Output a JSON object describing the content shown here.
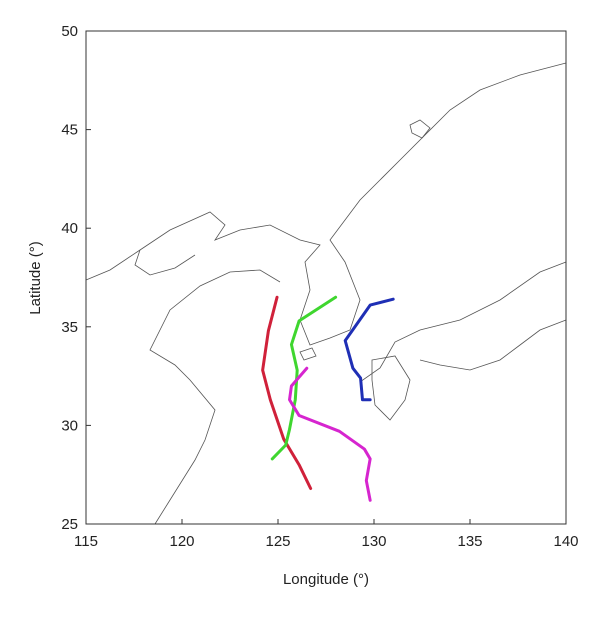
{
  "chart_data": {
    "type": "line",
    "xlabel": "Longitude (°)",
    "ylabel": "Latitude (°)",
    "xlim": [
      115,
      140
    ],
    "ylim": [
      25,
      50
    ],
    "xticks": [
      115,
      120,
      125,
      130,
      135,
      140
    ],
    "yticks": [
      25,
      30,
      35,
      40,
      45,
      50
    ],
    "series": [
      {
        "color": "#d0213a",
        "x": [
          124.95,
          124.5,
          124.2,
          124.6,
          125.3,
          126.1,
          126.7
        ],
        "values": [
          36.5,
          34.8,
          32.8,
          31.3,
          29.3,
          28.0,
          26.8
        ]
      },
      {
        "color": "#3fd62f",
        "x": [
          128.0,
          126.1,
          125.7,
          126.0,
          125.9,
          125.6,
          125.4,
          124.7
        ],
        "values": [
          36.5,
          35.3,
          34.1,
          32.8,
          31.3,
          29.8,
          29.0,
          28.3
        ]
      },
      {
        "color": "#1f2fb5",
        "x": [
          131.0,
          129.8,
          128.5,
          128.9,
          129.3,
          129.4,
          129.8
        ],
        "values": [
          36.4,
          36.1,
          34.3,
          32.9,
          32.4,
          31.3,
          31.3
        ]
      },
      {
        "color": "#d625cf",
        "x": [
          126.5,
          125.7,
          125.6,
          126.1,
          128.2,
          129.5,
          129.8,
          129.6,
          129.8
        ],
        "values": [
          32.9,
          32.0,
          31.3,
          30.5,
          29.7,
          28.8,
          28.3,
          27.2,
          26.2
        ]
      }
    ]
  }
}
